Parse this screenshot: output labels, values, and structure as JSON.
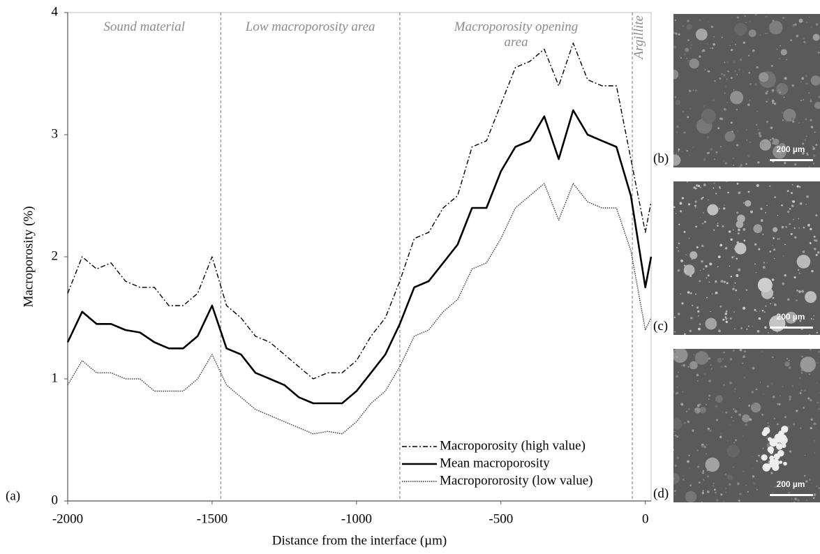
{
  "chart_data": {
    "type": "line",
    "x_label": "Distance from the interface (µm)",
    "y_label": "Macroporosity (%)",
    "panel_label": "(a)",
    "x": [
      -2000,
      -1950,
      -1900,
      -1850,
      -1800,
      -1750,
      -1700,
      -1650,
      -1600,
      -1550,
      -1500,
      -1450,
      -1400,
      -1350,
      -1300,
      -1250,
      -1200,
      -1150,
      -1100,
      -1050,
      -1000,
      -950,
      -900,
      -850,
      -800,
      -750,
      -700,
      -650,
      -600,
      -550,
      -500,
      -450,
      -400,
      -350,
      -300,
      -250,
      -200,
      -150,
      -100,
      -50,
      0,
      20
    ],
    "series": [
      {
        "name": "Macroporosity (high value)",
        "color": "#000000",
        "style": "dashdot",
        "values": [
          1.7,
          2.0,
          1.9,
          1.95,
          1.8,
          1.75,
          1.75,
          1.6,
          1.6,
          1.7,
          2.0,
          1.6,
          1.5,
          1.35,
          1.3,
          1.2,
          1.1,
          1.0,
          1.05,
          1.05,
          1.15,
          1.35,
          1.5,
          1.8,
          2.15,
          2.2,
          2.4,
          2.5,
          2.9,
          2.95,
          3.25,
          3.55,
          3.6,
          3.7,
          3.4,
          3.75,
          3.45,
          3.4,
          3.4,
          2.8,
          2.2,
          2.45
        ]
      },
      {
        "name": "Mean macroporosity",
        "color": "#000000",
        "style": "solid",
        "values": [
          1.3,
          1.55,
          1.45,
          1.45,
          1.4,
          1.38,
          1.3,
          1.25,
          1.25,
          1.35,
          1.6,
          1.25,
          1.2,
          1.05,
          1.0,
          0.95,
          0.85,
          0.8,
          0.8,
          0.8,
          0.9,
          1.05,
          1.2,
          1.45,
          1.75,
          1.8,
          1.95,
          2.1,
          2.4,
          2.4,
          2.7,
          2.9,
          2.95,
          3.15,
          2.8,
          3.2,
          3.0,
          2.95,
          2.9,
          2.5,
          1.75,
          2.0
        ]
      },
      {
        "name": "Macropororosity (low value)",
        "color": "#333333",
        "style": "dotted",
        "values": [
          0.95,
          1.15,
          1.05,
          1.05,
          1.0,
          1.0,
          0.9,
          0.9,
          0.9,
          1.0,
          1.2,
          0.95,
          0.85,
          0.75,
          0.7,
          0.65,
          0.6,
          0.55,
          0.57,
          0.55,
          0.65,
          0.8,
          0.9,
          1.1,
          1.35,
          1.4,
          1.55,
          1.65,
          1.9,
          1.95,
          2.15,
          2.4,
          2.5,
          2.6,
          2.3,
          2.6,
          2.45,
          2.4,
          2.4,
          2.05,
          1.4,
          1.5
        ]
      }
    ],
    "xlim": [
      -2000,
      20
    ],
    "xticks": [
      -2000,
      -1500,
      -1000,
      -500,
      0
    ],
    "ylim": [
      0,
      4
    ],
    "yticks": [
      0,
      1,
      2,
      3,
      4
    ],
    "dividers": [
      -1470,
      -850,
      -45
    ],
    "regions": [
      "Sound material",
      "Low macroporosity area",
      "Macroporosity opening area",
      "Argillite"
    ],
    "legend": "lower right"
  },
  "panels": [
    {
      "label": "(b)",
      "scale_bar": "200 µm"
    },
    {
      "label": "(c)",
      "scale_bar": "200 µm"
    },
    {
      "label": "(d)",
      "scale_bar": "200 µm"
    }
  ]
}
